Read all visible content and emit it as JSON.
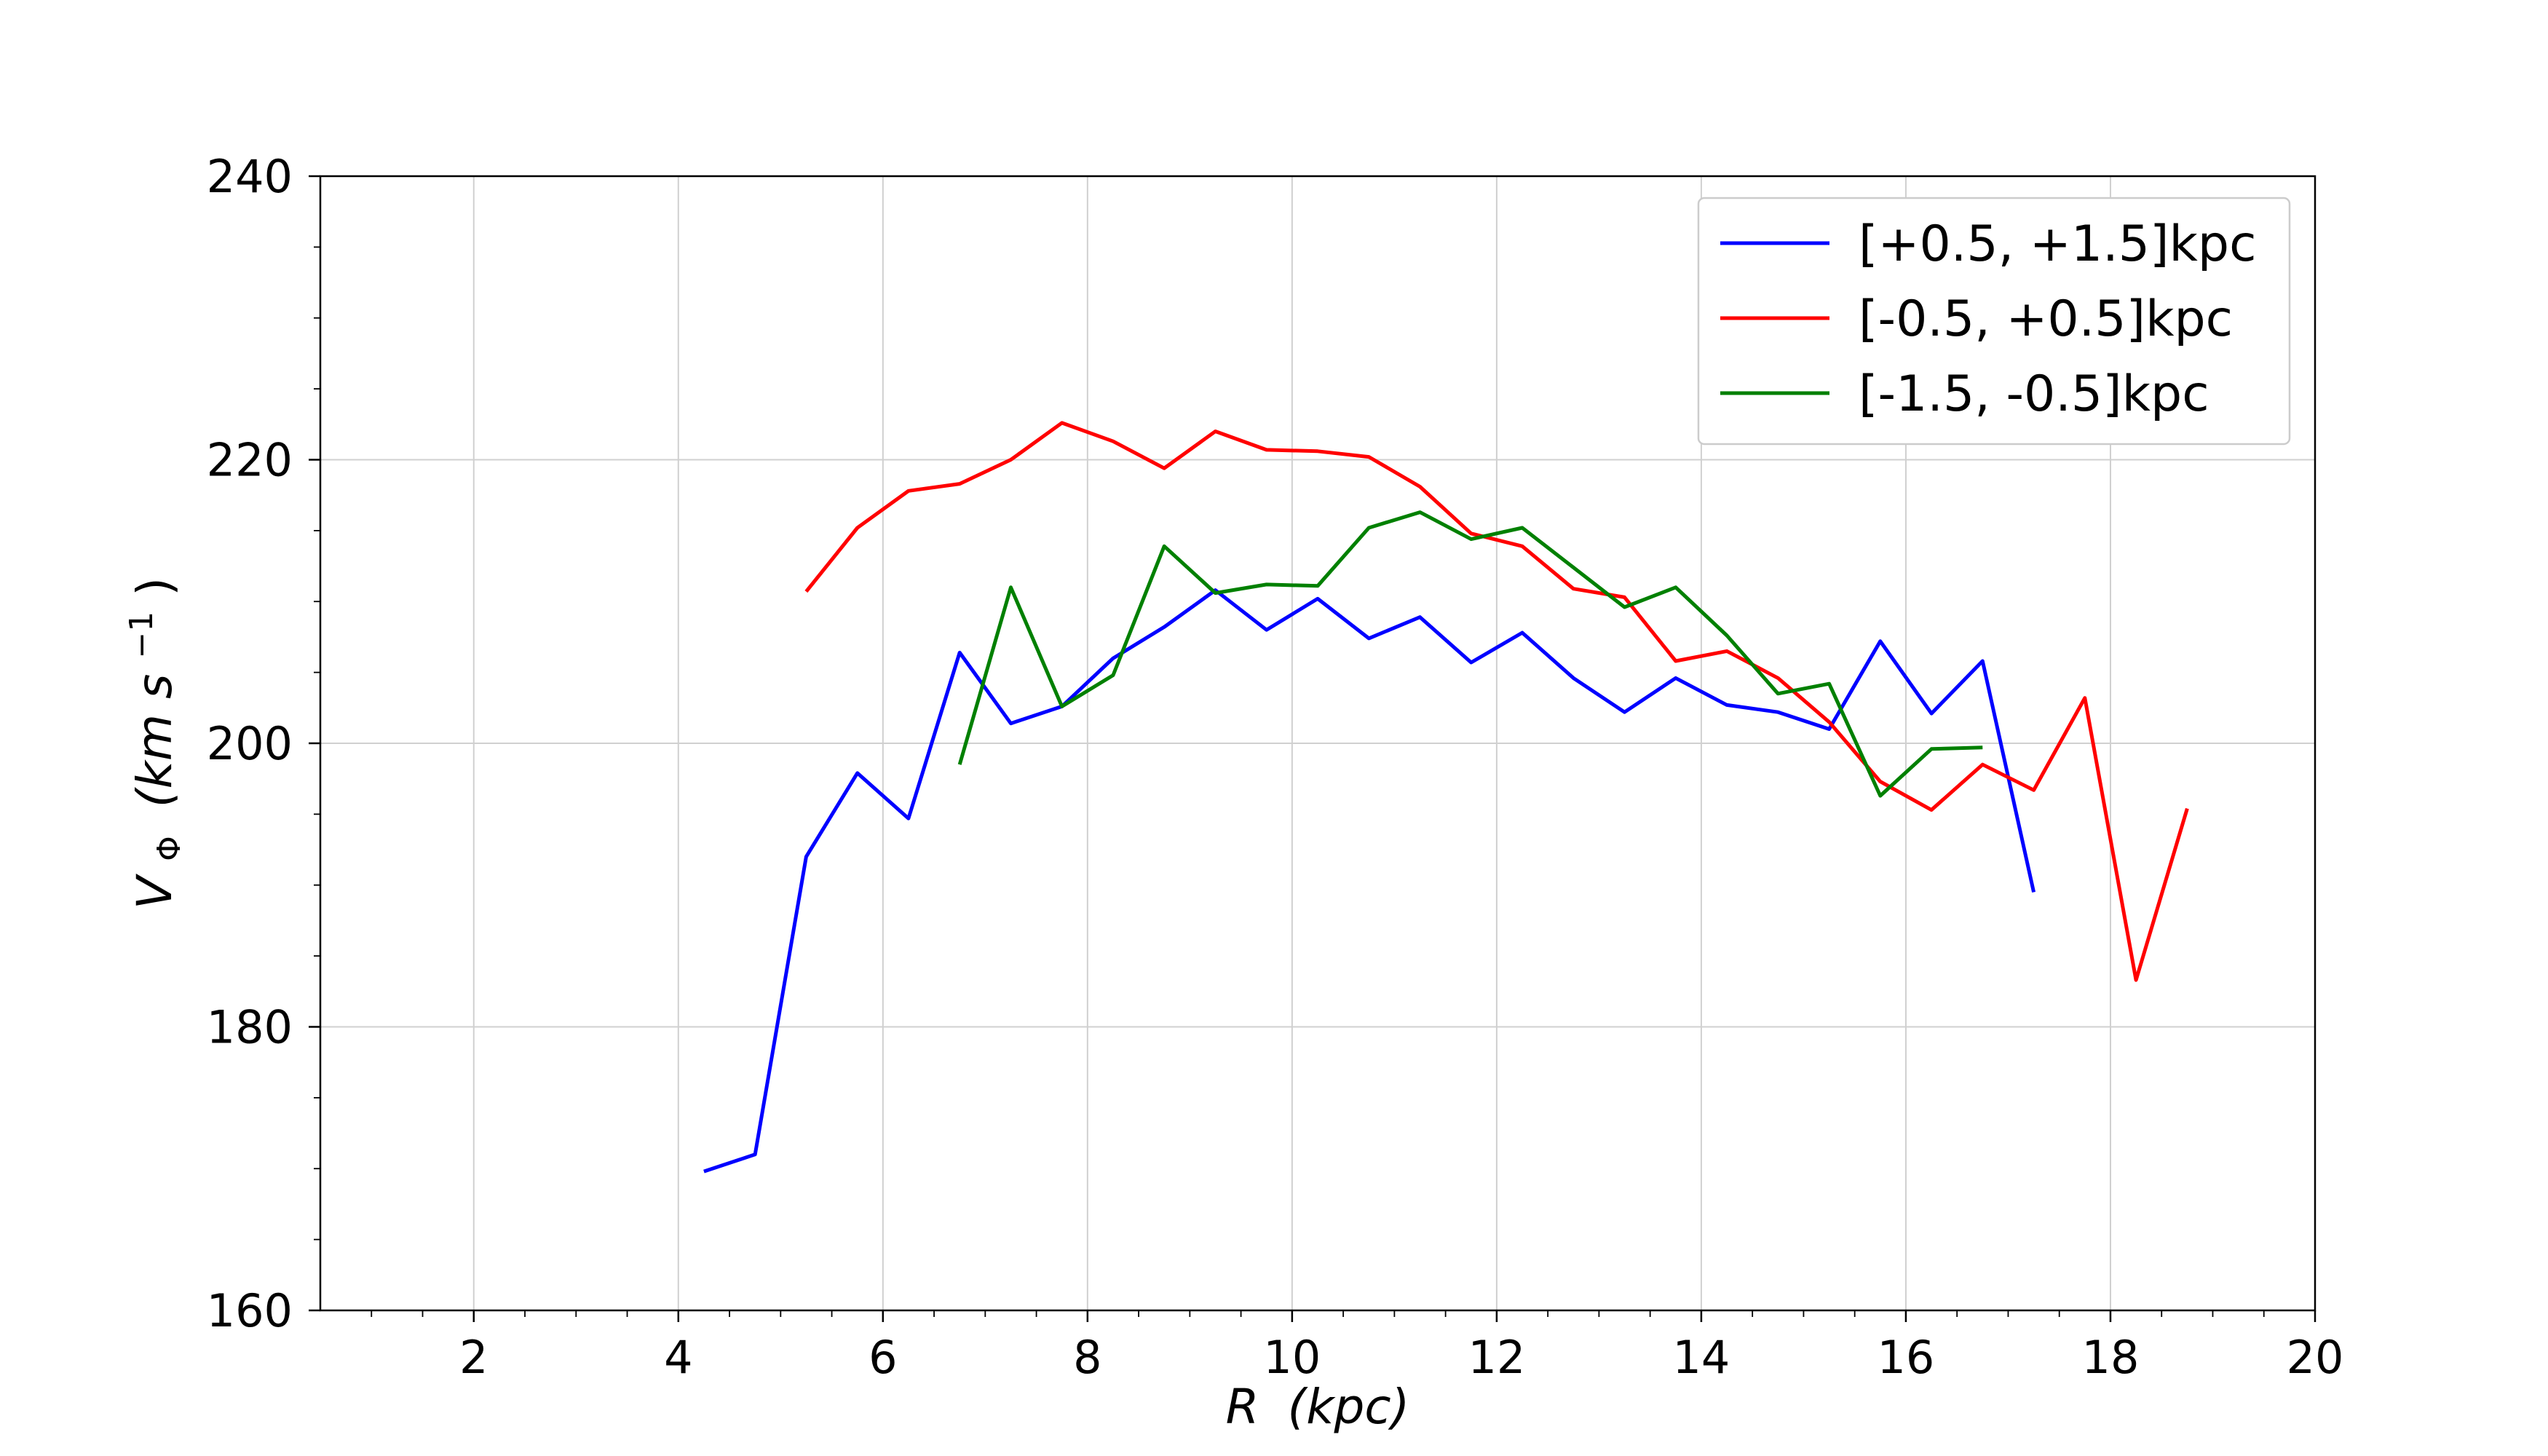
{
  "chart_data": {
    "type": "line",
    "xlabel_var": "R",
    "xlabel_unit": "(kpc)",
    "ylabel_var": "V",
    "ylabel_sub": "Φ",
    "ylabel_unit_pre": "(km s",
    "ylabel_unit_sup": "−1",
    "ylabel_unit_post": ")",
    "xlim": [
      0.5,
      20
    ],
    "ylim": [
      160,
      240
    ],
    "xticks": [
      2,
      4,
      6,
      8,
      10,
      12,
      14,
      16,
      18,
      20
    ],
    "yticks": [
      160,
      180,
      200,
      220,
      240
    ],
    "grid": true,
    "legend_position": "top-right",
    "series": [
      {
        "name": "[+0.5, +1.5]kpc",
        "color": "#0000ff",
        "x": [
          4.25,
          4.75,
          5.25,
          5.75,
          6.25,
          6.75,
          7.25,
          7.75,
          8.25,
          8.75,
          9.25,
          9.75,
          10.25,
          10.75,
          11.25,
          11.75,
          12.25,
          12.75,
          13.25,
          13.75,
          14.25,
          14.75,
          15.25,
          15.75,
          16.25,
          16.75,
          17.25
        ],
        "y": [
          169.8,
          171.0,
          192.0,
          197.9,
          194.7,
          206.4,
          201.4,
          202.6,
          206.0,
          208.2,
          210.8,
          208.0,
          210.2,
          207.4,
          208.9,
          205.7,
          207.8,
          204.6,
          202.2,
          204.6,
          202.7,
          202.2,
          201.0,
          207.2,
          202.1,
          205.8,
          189.5
        ]
      },
      {
        "name": "[-0.5, +0.5]kpc",
        "color": "#ff0000",
        "x": [
          5.25,
          5.75,
          6.25,
          6.75,
          7.25,
          7.75,
          8.25,
          8.75,
          9.25,
          9.75,
          10.25,
          10.75,
          11.25,
          11.75,
          12.25,
          12.75,
          13.25,
          13.75,
          14.25,
          14.75,
          15.25,
          15.75,
          16.25,
          16.75,
          17.25,
          17.75,
          18.25,
          18.75
        ],
        "y": [
          210.7,
          215.2,
          217.8,
          218.3,
          220.0,
          222.6,
          221.3,
          219.4,
          222.0,
          220.7,
          220.6,
          220.2,
          218.1,
          214.8,
          213.9,
          210.9,
          210.3,
          205.8,
          206.5,
          204.6,
          201.5,
          197.3,
          195.3,
          198.5,
          196.7,
          203.2,
          183.3,
          195.4
        ]
      },
      {
        "name": "[-1.5, -0.5]kpc",
        "color": "#008000",
        "x": [
          6.75,
          7.25,
          7.75,
          8.25,
          8.75,
          9.25,
          9.75,
          10.25,
          10.75,
          11.25,
          11.75,
          12.25,
          12.75,
          13.25,
          13.75,
          14.25,
          14.75,
          15.25,
          15.75,
          16.25,
          16.75
        ],
        "y": [
          198.5,
          211.0,
          202.6,
          204.8,
          213.9,
          210.6,
          211.2,
          211.1,
          215.2,
          216.3,
          214.4,
          215.2,
          212.4,
          209.6,
          211.0,
          207.6,
          203.5,
          204.2,
          196.3,
          199.6,
          199.7
        ]
      }
    ]
  }
}
